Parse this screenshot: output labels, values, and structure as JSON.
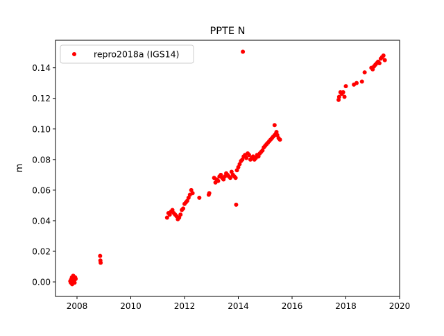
{
  "chart_data": {
    "type": "scatter",
    "title": "PPTE N",
    "xlabel": "",
    "ylabel": "m",
    "xlim": [
      2007.2,
      2020.0
    ],
    "ylim": [
      -0.0095,
      0.158
    ],
    "x_ticks": [
      2008,
      2010,
      2012,
      2014,
      2016,
      2018,
      2020
    ],
    "x_tick_labels": [
      "2008",
      "2010",
      "2012",
      "2014",
      "2016",
      "2018",
      "2020"
    ],
    "y_ticks": [
      0.0,
      0.02,
      0.04,
      0.06,
      0.08,
      0.1,
      0.12,
      0.14
    ],
    "y_tick_labels": [
      "0.00",
      "0.02",
      "0.04",
      "0.06",
      "0.08",
      "0.10",
      "0.12",
      "0.14"
    ],
    "grid": false,
    "legend_position": "top-left",
    "series": [
      {
        "name": "repro2018a (IGS14)",
        "color": "#ff0000",
        "marker": "circle",
        "x": [
          2007.75,
          2007.77,
          2007.78,
          2007.8,
          2007.81,
          2007.83,
          2007.84,
          2007.86,
          2007.88,
          2007.9,
          2007.92,
          2007.93,
          2007.95,
          2007.82,
          2007.87,
          2007.91,
          2008.86,
          2008.87,
          2008.88,
          2011.35,
          2011.4,
          2011.45,
          2011.5,
          2011.55,
          2011.6,
          2011.65,
          2011.7,
          2011.75,
          2011.8,
          2011.85,
          2011.9,
          2011.95,
          2012.0,
          2012.05,
          2012.1,
          2012.15,
          2012.2,
          2012.25,
          2012.3,
          2012.55,
          2012.9,
          2012.92,
          2013.1,
          2013.15,
          2013.2,
          2013.25,
          2013.3,
          2013.35,
          2013.4,
          2013.45,
          2013.5,
          2013.55,
          2013.6,
          2013.65,
          2013.7,
          2013.75,
          2013.8,
          2013.85,
          2013.9,
          2013.95,
          2014.0,
          2014.05,
          2014.1,
          2014.15,
          2014.2,
          2014.25,
          2014.3,
          2014.35,
          2014.4,
          2014.45,
          2014.5,
          2014.55,
          2014.6,
          2014.65,
          2014.7,
          2014.75,
          2014.8,
          2014.85,
          2014.9,
          2014.95,
          2015.0,
          2015.05,
          2015.1,
          2015.15,
          2015.2,
          2015.25,
          2015.3,
          2015.35,
          2015.4,
          2015.45,
          2015.5,
          2015.55,
          2015.35,
          2015.42,
          2013.92,
          2014.17,
          2017.73,
          2017.75,
          2017.8,
          2017.85,
          2017.9,
          2017.95,
          2018.0,
          2018.3,
          2018.4,
          2018.6,
          2018.7,
          2018.95,
          2019.0,
          2019.05,
          2019.1,
          2019.15,
          2019.2,
          2019.25,
          2019.3,
          2019.35,
          2019.4,
          2019.45
        ],
        "y": [
          0.0005,
          -0.0005,
          0.0015,
          0.001,
          0.003,
          0.0005,
          0.002,
          0.004,
          0.0035,
          0.0025,
          0.0015,
          0.003,
          0.002,
          -0.0015,
          0.001,
          -0.0005,
          0.017,
          0.014,
          0.0125,
          0.042,
          0.045,
          0.044,
          0.046,
          0.047,
          0.045,
          0.044,
          0.043,
          0.041,
          0.042,
          0.044,
          0.047,
          0.048,
          0.051,
          0.052,
          0.053,
          0.055,
          0.057,
          0.06,
          0.058,
          0.055,
          0.057,
          0.058,
          0.068,
          0.065,
          0.067,
          0.066,
          0.069,
          0.07,
          0.068,
          0.067,
          0.069,
          0.071,
          0.07,
          0.069,
          0.068,
          0.072,
          0.07,
          0.069,
          0.068,
          0.073,
          0.075,
          0.077,
          0.079,
          0.08,
          0.082,
          0.083,
          0.081,
          0.084,
          0.083,
          0.08,
          0.081,
          0.082,
          0.08,
          0.081,
          0.083,
          0.082,
          0.084,
          0.085,
          0.086,
          0.088,
          0.089,
          0.09,
          0.091,
          0.092,
          0.093,
          0.094,
          0.095,
          0.096,
          0.097,
          0.096,
          0.094,
          0.093,
          0.1025,
          0.098,
          0.0505,
          0.1505,
          0.119,
          0.121,
          0.124,
          0.123,
          0.124,
          0.121,
          0.128,
          0.129,
          0.13,
          0.131,
          0.137,
          0.14,
          0.139,
          0.141,
          0.142,
          0.143,
          0.144,
          0.143,
          0.146,
          0.147,
          0.148,
          0.145
        ]
      }
    ]
  }
}
